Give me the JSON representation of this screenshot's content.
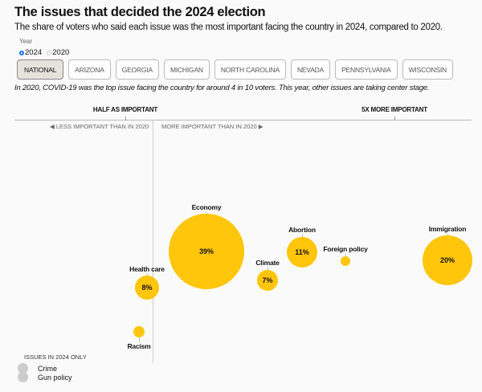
{
  "header": {
    "title": "The issues that decided the 2024 election",
    "subtitle": "The share of voters who said each issue was the most important facing the country in 2024, compared to 2020."
  },
  "year_selector": {
    "label": "Year",
    "options": [
      "2024",
      "2020"
    ],
    "selected": "2024"
  },
  "tabs": [
    "NATIONAL",
    "ARIZONA",
    "GEORGIA",
    "MICHIGAN",
    "NORTH CAROLINA",
    "NEVADA",
    "PENNSYLVANIA",
    "WISCONSIN"
  ],
  "active_tab": "NATIONAL",
  "note": "In 2020, COVID-19 was the top issue facing the country for around 4 in 10 voters. This year, other issues are taking center stage.",
  "colors": {
    "bubble": "#ffc60b",
    "new_issue": "#cccccc",
    "background": "#fafafa"
  },
  "chart_data": {
    "type": "scatter",
    "encoding": "bubble size = share of voters in 2024; horizontal position = importance relative to 2020",
    "axis": {
      "ticks": [
        "HALF AS IMPORTANT",
        "5X MORE IMPORTANT"
      ],
      "left_direction": "LESS IMPORTANT THAN IN 2020",
      "right_direction": "MORE IMPORTANT THAN IN 2020"
    },
    "issues": [
      {
        "name": "Economy",
        "label": "39%",
        "share": 39
      },
      {
        "name": "Health care",
        "label": "8%",
        "share": 8
      },
      {
        "name": "Racism",
        "label": "",
        "share": null
      },
      {
        "name": "Climate",
        "label": "7%",
        "share": 7
      },
      {
        "name": "Abortion",
        "label": "11%",
        "share": 11
      },
      {
        "name": "Foreign policy",
        "label": "",
        "share": null
      },
      {
        "name": "Immigration",
        "label": "20%",
        "share": 20
      }
    ],
    "legend": {
      "title": "ISSUES IN 2024 ONLY",
      "items": [
        "Crime",
        "Gun policy"
      ]
    }
  }
}
